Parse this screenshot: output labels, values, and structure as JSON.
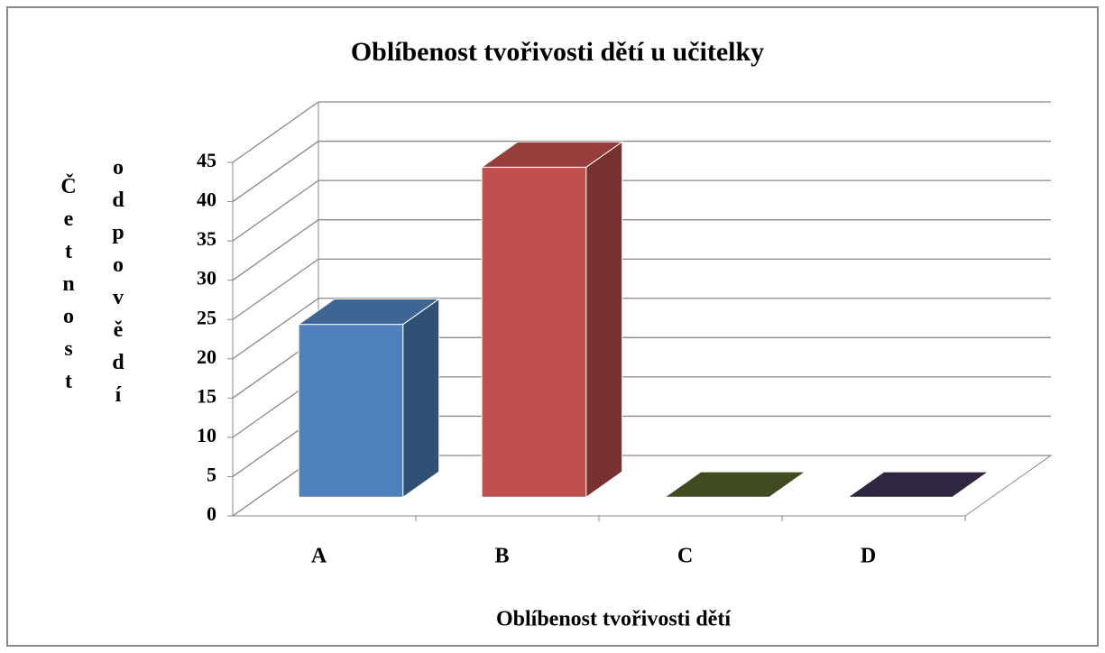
{
  "chart_data": {
    "type": "bar3d",
    "title": "Oblíbenost tvořivosti dětí u učitelky",
    "x_label": "Oblíbenost tvořivosti dětí",
    "y_label": [
      "Četnost",
      "odpovědí"
    ],
    "categories": [
      "A",
      "B",
      "C",
      "D"
    ],
    "values": [
      22,
      42,
      0,
      0
    ],
    "colors": [
      "#4f81bd",
      "#c0504d",
      "#4f6228",
      "#3f3151"
    ],
    "ylim": [
      0,
      45
    ],
    "yticks": [
      0,
      5,
      10,
      15,
      20,
      25,
      30,
      35,
      40,
      45
    ],
    "grid": true
  }
}
